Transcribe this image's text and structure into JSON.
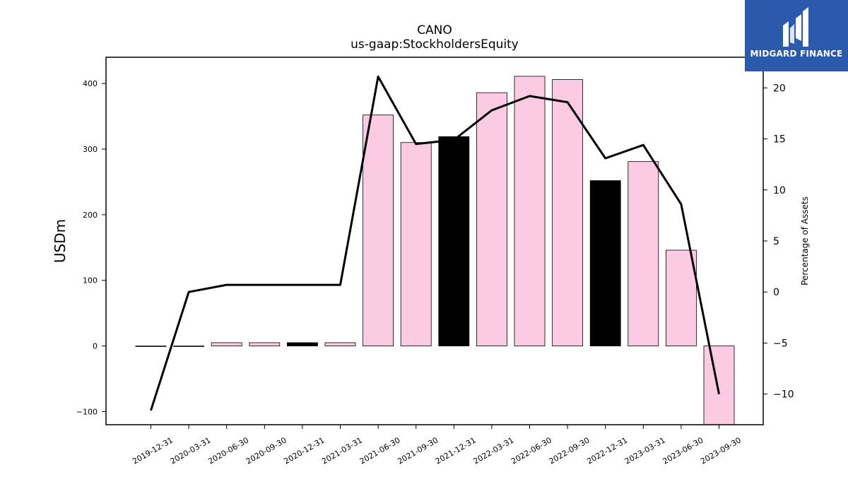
{
  "chart_data": {
    "type": "bar",
    "title": "CANO",
    "subtitle": "us-gaap:StockholdersEquity",
    "ylabel": "USDm",
    "y2label": "Percentage of Assets",
    "ylim": [
      -120,
      440
    ],
    "y2lim": [
      -13,
      23
    ],
    "yticks": [
      -100,
      0,
      100,
      200,
      300,
      400
    ],
    "y2ticks": [
      -10,
      -5,
      0,
      5,
      10,
      15,
      20
    ],
    "categories": [
      "2019-12-31",
      "2020-03-31",
      "2020-06-30",
      "2020-09-30",
      "2020-12-31",
      "2021-03-31",
      "2021-06-30",
      "2021-09-30",
      "2021-12-31",
      "2022-03-31",
      "2022-06-30",
      "2022-09-30",
      "2022-12-31",
      "2023-03-31",
      "2023-06-30",
      "2023-09-30"
    ],
    "series": [
      {
        "type": "bar",
        "values": [
          0,
          0,
          5,
          5,
          5,
          5,
          352,
          310,
          319,
          386,
          411,
          406,
          252,
          281,
          146,
          -125
        ],
        "colors": [
          "#fbcae3",
          "#fbcae3",
          "#fbcae3",
          "#fbcae3",
          "#000000",
          "#fbcae3",
          "#fbcae3",
          "#fbcae3",
          "#000000",
          "#fbcae3",
          "#fbcae3",
          "#fbcae3",
          "#000000",
          "#fbcae3",
          "#fbcae3",
          "#fbcae3"
        ]
      },
      {
        "type": "line",
        "axis": "right",
        "values": [
          -11.6,
          0.0,
          0.7,
          0.7,
          0.7,
          0.7,
          21.1,
          14.5,
          14.9,
          17.8,
          19.2,
          18.6,
          13.1,
          14.4,
          8.6,
          -10.0
        ],
        "color": "#000000"
      }
    ],
    "grid": false
  },
  "logo": {
    "text": "MIDGARD FINANCE",
    "color": "#2b5aad"
  }
}
